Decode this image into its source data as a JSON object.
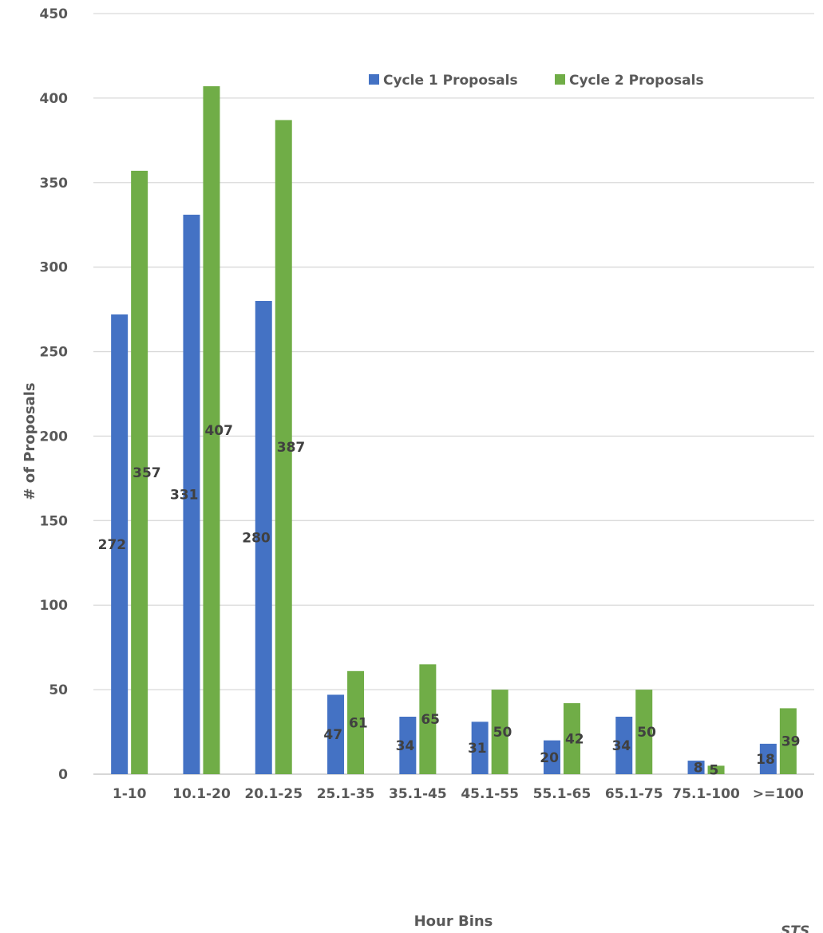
{
  "chart_data": {
    "type": "bar",
    "categories": [
      "1-10",
      "10.1-20",
      "20.1-25",
      "25.1-35",
      "35.1-45",
      "45.1-55",
      "55.1-65",
      "65.1-75",
      "75.1-100",
      ">=100"
    ],
    "series": [
      {
        "name": "Cycle 1 Proposals",
        "color": "#4472C4",
        "values": [
          272,
          331,
          280,
          47,
          34,
          31,
          20,
          34,
          8,
          18
        ]
      },
      {
        "name": "Cycle 2 Proposals",
        "color": "#70AD47",
        "values": [
          357,
          407,
          387,
          61,
          65,
          50,
          42,
          50,
          5,
          39
        ]
      }
    ],
    "xlabel": "Hour Bins",
    "ylabel": "# of Proposals",
    "ylim": [
      0,
      450
    ],
    "yticks": [
      0,
      50,
      100,
      150,
      200,
      250,
      300,
      350,
      400,
      450
    ],
    "grid": true,
    "legend_position": "top-right",
    "corner_text": "STS"
  }
}
